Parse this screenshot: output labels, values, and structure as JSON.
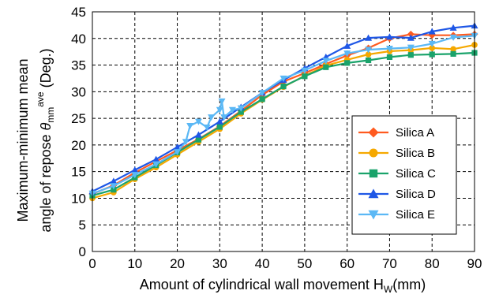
{
  "chart_data": {
    "type": "line",
    "xlabel": "Amount of cylindrical wall movement H",
    "xlabel_sub": "W",
    "xlabel_unit": "(mm)",
    "ylabel_line1": "Maximum-minimum mean",
    "ylabel_line2_prefix": "angle of repose ",
    "ylabel_symbol": "θ",
    "ylabel_sub": "mm",
    "ylabel_sup": "ave",
    "ylabel_unit": " (Deg.)",
    "xlim": [
      0,
      90
    ],
    "ylim": [
      0,
      45
    ],
    "x_ticks": [
      "0",
      "10",
      "20",
      "30",
      "40",
      "50",
      "60",
      "70",
      "80",
      "90"
    ],
    "y_ticks": [
      "0",
      "5",
      "10",
      "15",
      "20",
      "25",
      "30",
      "35",
      "40",
      "45"
    ],
    "grid": true,
    "legend_position": "lower-right",
    "series": [
      {
        "name": "Silica A",
        "color": "#ff5a1f",
        "marker": "diamond",
        "x": [
          0,
          5,
          10,
          15,
          20,
          25,
          30,
          35,
          40,
          45,
          50,
          55,
          60,
          65,
          70,
          75,
          80,
          85,
          90
        ],
        "y": [
          10.8,
          12.4,
          14.8,
          16.9,
          19.0,
          21.1,
          23.5,
          26.4,
          29.4,
          31.9,
          33.5,
          35.2,
          36.8,
          38.2,
          40.0,
          40.8,
          40.6,
          40.6,
          40.8
        ]
      },
      {
        "name": "Silica B",
        "color": "#f5a800",
        "marker": "circle",
        "x": [
          0,
          5,
          10,
          15,
          20,
          25,
          30,
          35,
          40,
          45,
          50,
          55,
          60,
          65,
          70,
          75,
          80,
          85,
          90
        ],
        "y": [
          10.0,
          11.1,
          13.6,
          15.8,
          18.2,
          20.6,
          23.0,
          25.9,
          28.5,
          30.9,
          33.0,
          34.9,
          36.0,
          37.0,
          37.6,
          37.8,
          38.2,
          38.0,
          38.8
        ]
      },
      {
        "name": "Silica C",
        "color": "#1aa36b",
        "marker": "square",
        "x": [
          0,
          5,
          10,
          15,
          20,
          25,
          30,
          35,
          40,
          45,
          50,
          55,
          60,
          65,
          70,
          75,
          80,
          85,
          90
        ],
        "y": [
          10.5,
          11.6,
          13.9,
          16.2,
          18.6,
          21.0,
          23.4,
          26.2,
          28.6,
          31.0,
          32.9,
          34.6,
          35.4,
          35.9,
          36.5,
          36.9,
          37.0,
          37.1,
          37.3
        ]
      },
      {
        "name": "Silica D",
        "color": "#1f57e6",
        "marker": "triangle-up",
        "x": [
          0,
          5,
          10,
          15,
          20,
          25,
          30,
          35,
          40,
          45,
          50,
          55,
          60,
          65,
          70,
          75,
          80,
          85,
          90
        ],
        "y": [
          11.3,
          13.2,
          15.3,
          17.3,
          19.6,
          21.9,
          24.4,
          27.1,
          29.8,
          32.2,
          34.4,
          36.5,
          38.6,
          40.1,
          40.3,
          40.1,
          41.3,
          42.0,
          42.4
        ]
      },
      {
        "name": "Silica E",
        "color": "#5bb8f5",
        "marker": "triangle-down",
        "x": [
          0,
          5,
          10,
          15,
          20,
          22,
          23,
          25,
          27,
          28,
          30,
          30.5,
          31,
          33,
          35,
          40,
          45,
          50,
          55,
          60,
          65,
          70,
          75,
          80,
          85,
          90
        ],
        "y": [
          10.9,
          12.3,
          14.4,
          16.4,
          18.7,
          20.6,
          23.6,
          24.4,
          23.3,
          25.2,
          26.6,
          28.2,
          25.2,
          26.6,
          26.9,
          29.8,
          32.5,
          34.0,
          35.8,
          37.2,
          37.9,
          38.1,
          38.3,
          39.0,
          40.2,
          40.5
        ]
      }
    ]
  }
}
